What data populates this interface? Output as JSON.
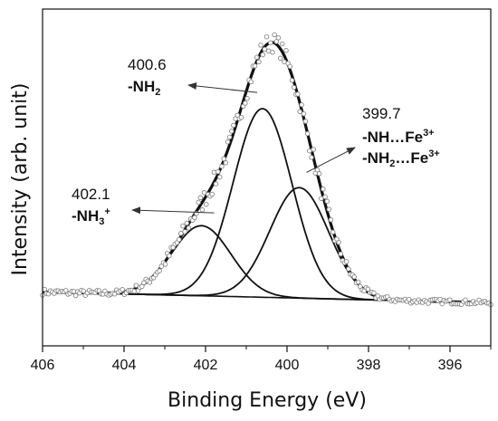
{
  "chart_data": {
    "type": "line",
    "title": "",
    "xlabel": "Binding Energy (eV)",
    "ylabel": "Intensity (arb. unit)",
    "xlim": [
      406,
      395
    ],
    "x_reversed": true,
    "ylim": [
      -0.2,
      1.05
    ],
    "x_ticks": [
      "406",
      "404",
      "402",
      "400",
      "398",
      "396"
    ],
    "y_ticks_shown": false,
    "grid": false,
    "legend": "none",
    "colors": {
      "line": "#111111",
      "points": "#888888"
    },
    "components": [
      {
        "name": "",
        "center": 402.1,
        "height": 0.26,
        "fwhm": 1.7
      },
      {
        "name": "",
        "center": 400.6,
        "height": 0.7,
        "fwhm": 1.7
      },
      {
        "name": "",
        "center": 399.7,
        "height": 0.41,
        "fwhm": 1.7
      }
    ],
    "background": {
      "x": [
        406,
        395
      ],
      "y": [
        0.0,
        -0.04
      ]
    },
    "envelope_peak": {
      "x": 400.4,
      "y": 1.0
    },
    "annotations": [
      {
        "value": "400.6",
        "label_parts": [
          "-NH",
          "2",
          ""
        ],
        "arrow_to_x": 400.6,
        "arrow_to_y": 0.7
      },
      {
        "value": "399.7",
        "label_parts": [
          "-NH…Fe",
          "3+"
        ],
        "label2_parts": [
          "-NH",
          "2",
          "…Fe",
          "3+"
        ],
        "arrow_to_x": 399.7,
        "arrow_to_y": 0.41
      },
      {
        "value": "402.1",
        "label_parts": [
          "-NH",
          "3",
          "+"
        ],
        "arrow_to_x": 402.1,
        "arrow_to_y": 0.26
      }
    ]
  }
}
